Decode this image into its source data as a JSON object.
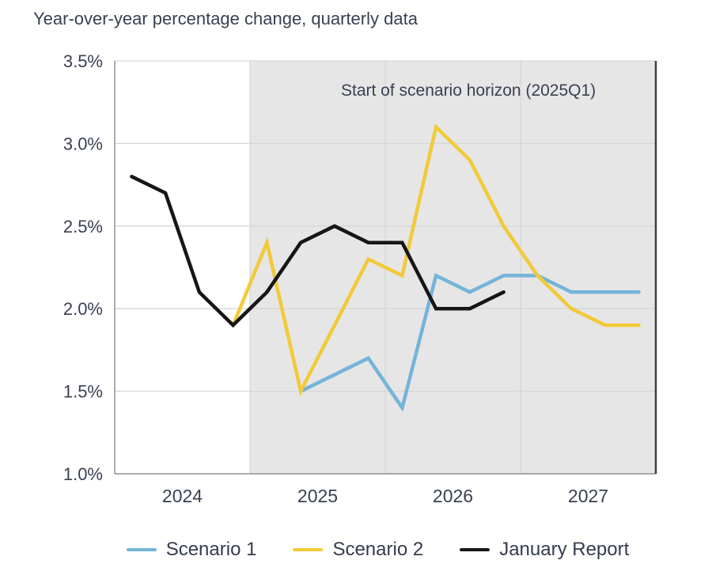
{
  "page": {
    "background": "#ffffff"
  },
  "chart_data": {
    "type": "line",
    "title": "Year-over-year percentage change, quarterly data",
    "xlabel": "",
    "ylabel": "",
    "categories": [
      "2024Q1",
      "2024Q2",
      "2024Q3",
      "2024Q4",
      "2025Q1",
      "2025Q2",
      "2025Q3",
      "2025Q4",
      "2026Q1",
      "2026Q2",
      "2026Q3",
      "2026Q4",
      "2027Q1",
      "2027Q2",
      "2027Q3",
      "2027Q4"
    ],
    "x_tick_labels": [
      "2024",
      "2025",
      "2026",
      "2027"
    ],
    "y_ticks": [
      3.5,
      3.0,
      2.5,
      2.0,
      1.5,
      1.0
    ],
    "y_tick_labels": [
      "3.5%",
      "3.0%",
      "2.5%",
      "2.0%",
      "1.5%",
      "1.0%"
    ],
    "ylim": [
      1.0,
      3.5
    ],
    "grid": true,
    "legend_position": "bottom",
    "annotation": "Start of scenario horizon (2025Q1)",
    "shaded_region": {
      "from_category": "2025Q1",
      "to_category": "2027Q4",
      "color": "#e6e6e6"
    },
    "colors": {
      "grid": "#d6d6d6",
      "axis": "#8f8f8f",
      "plot_right_border": "#3f3f3f",
      "text": "#3a4052"
    },
    "series": [
      {
        "name": "Scenario 1",
        "color": "#74b4d8",
        "values": [
          null,
          null,
          null,
          null,
          null,
          1.5,
          1.6,
          1.7,
          1.4,
          2.2,
          2.1,
          2.2,
          2.2,
          2.1,
          2.1,
          2.1
        ]
      },
      {
        "name": "Scenario 2",
        "color": "#f1ca39",
        "values": [
          null,
          null,
          null,
          1.9,
          2.4,
          1.5,
          1.9,
          2.3,
          2.2,
          3.1,
          2.9,
          2.5,
          2.2,
          2.0,
          1.9,
          1.9
        ]
      },
      {
        "name": "January Report",
        "color": "#161616",
        "values": [
          2.8,
          2.7,
          2.1,
          1.9,
          2.1,
          2.4,
          2.5,
          2.4,
          2.4,
          2.0,
          2.0,
          2.1,
          null,
          null,
          null,
          null
        ]
      }
    ]
  }
}
